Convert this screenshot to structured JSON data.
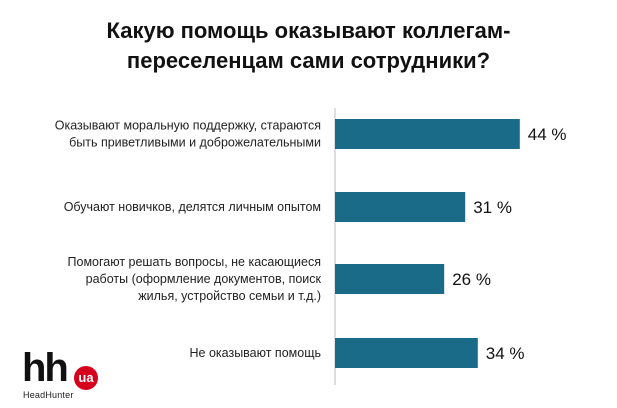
{
  "title_lines": [
    "Какую помощь оказывают коллегам-",
    "переселенцам сами сотрудники?"
  ],
  "logo": {
    "mark": "hh",
    "badge": "ua",
    "sub": "HeadHunter"
  },
  "colors": {
    "bar": "#1a6b87",
    "axis": "#bfbfbf"
  },
  "chart_data": {
    "type": "bar",
    "orientation": "horizontal",
    "title": "Какую помощь оказывают коллегам-переселенцам сами сотрудники?",
    "categories": [
      [
        "Оказывают моральную поддержку, стараются",
        "быть приветливыми и доброжелательными"
      ],
      [
        "Обучают новичков, делятся личным опытом"
      ],
      [
        "Помогают решать вопросы, не касающиеся",
        "работы (оформление документов, поиск",
        "жилья, устройство семьи и т.д.)"
      ],
      [
        "Не оказывают помощь"
      ]
    ],
    "values": [
      44,
      31,
      26,
      34
    ],
    "value_labels": [
      "44 %",
      "31 %",
      "26 %",
      "34 %"
    ],
    "unit": "%",
    "xlim": [
      0,
      100
    ],
    "grid": false,
    "legend": "none"
  }
}
